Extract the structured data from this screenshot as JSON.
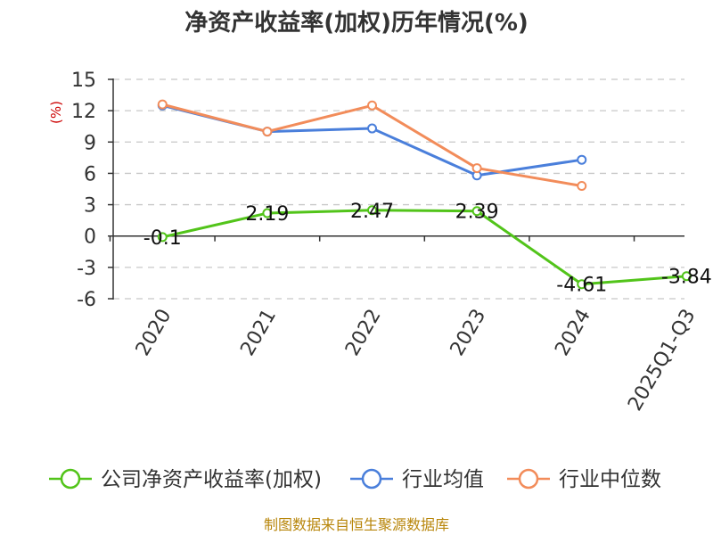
{
  "chart_data": {
    "type": "line",
    "title": "净资产收益率(加权)历年情况(%)",
    "ylabel": "(%)",
    "categories": [
      "2020",
      "2021",
      "2022",
      "2023",
      "2024",
      "2025Q1-Q3"
    ],
    "yticks": [
      15,
      12,
      9,
      6,
      3,
      0,
      -3,
      -6
    ],
    "ylim": [
      -6,
      15
    ],
    "grid": true,
    "legend_position": "bottom",
    "series": [
      {
        "name": "公司净资产收益率(加权)",
        "color": "#52c41a",
        "values": [
          -0.1,
          2.19,
          2.47,
          2.39,
          -4.61,
          -3.84
        ],
        "labels": [
          "-0.1",
          "2.19",
          "2.47",
          "2.39",
          "-4.61",
          "-3.84"
        ]
      },
      {
        "name": "行业均值",
        "color": "#4a7fdb",
        "values": [
          12.5,
          10.0,
          10.3,
          5.8,
          7.3,
          null
        ]
      },
      {
        "name": "行业中位数",
        "color": "#f28c5a",
        "values": [
          12.6,
          10.0,
          12.5,
          6.5,
          4.8,
          null
        ]
      }
    ]
  },
  "footer": "制图数据来自恒生聚源数据库"
}
